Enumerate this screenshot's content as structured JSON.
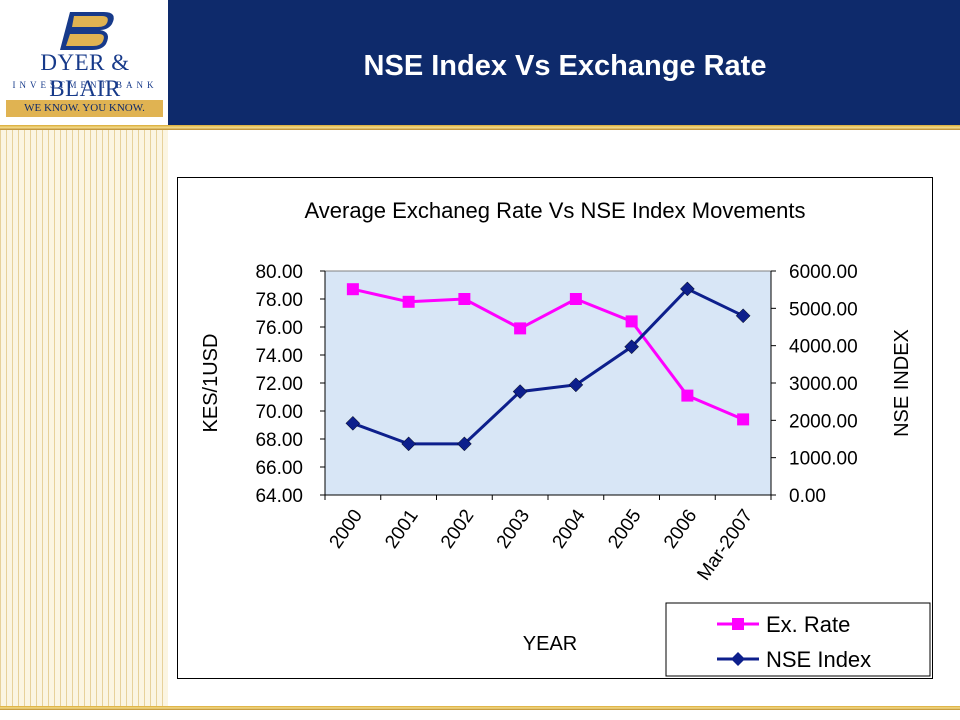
{
  "header": {
    "title": "NSE Index Vs Exchange Rate",
    "logo": {
      "emblem": "DB",
      "name": "DYER & BLAIR",
      "subtitle": "INVESTMENT BANK",
      "tagline": "WE KNOW. YOU KNOW."
    }
  },
  "colors": {
    "header_bg": "#0e2a6b",
    "gold": "#e0b352",
    "ex_rate": "#ff00ff",
    "nse_index": "#0d1f8c",
    "plot_bg": "#d8e6f6"
  },
  "chart_data": {
    "type": "line",
    "title": "Average Exchaneg Rate Vs NSE Index Movements",
    "xlabel": "YEAR",
    "ylabel_left": "KES/1USD",
    "ylabel_right": "NSE INDEX",
    "categories": [
      "2000",
      "2001",
      "2002",
      "2003",
      "2004",
      "2005",
      "2006",
      "Mar-2007"
    ],
    "left_axis": {
      "min": 64,
      "max": 80,
      "ticks": [
        "64.00",
        "66.00",
        "68.00",
        "70.00",
        "72.00",
        "74.00",
        "76.00",
        "78.00",
        "80.00"
      ]
    },
    "right_axis": {
      "min": 0,
      "max": 6000,
      "ticks": [
        "0.00",
        "1000.00",
        "2000.00",
        "3000.00",
        "4000.00",
        "5000.00",
        "6000.00"
      ]
    },
    "series": [
      {
        "name": "Ex. Rate",
        "axis": "left",
        "marker": "square",
        "values": [
          78.7,
          77.8,
          78.0,
          75.9,
          78.0,
          76.4,
          71.1,
          69.4
        ]
      },
      {
        "name": "NSE Index",
        "axis": "right",
        "marker": "diamond",
        "values": [
          1920,
          1370,
          1370,
          2770,
          2950,
          3970,
          5520,
          4800
        ]
      }
    ],
    "legend_position": "bottom-right"
  }
}
